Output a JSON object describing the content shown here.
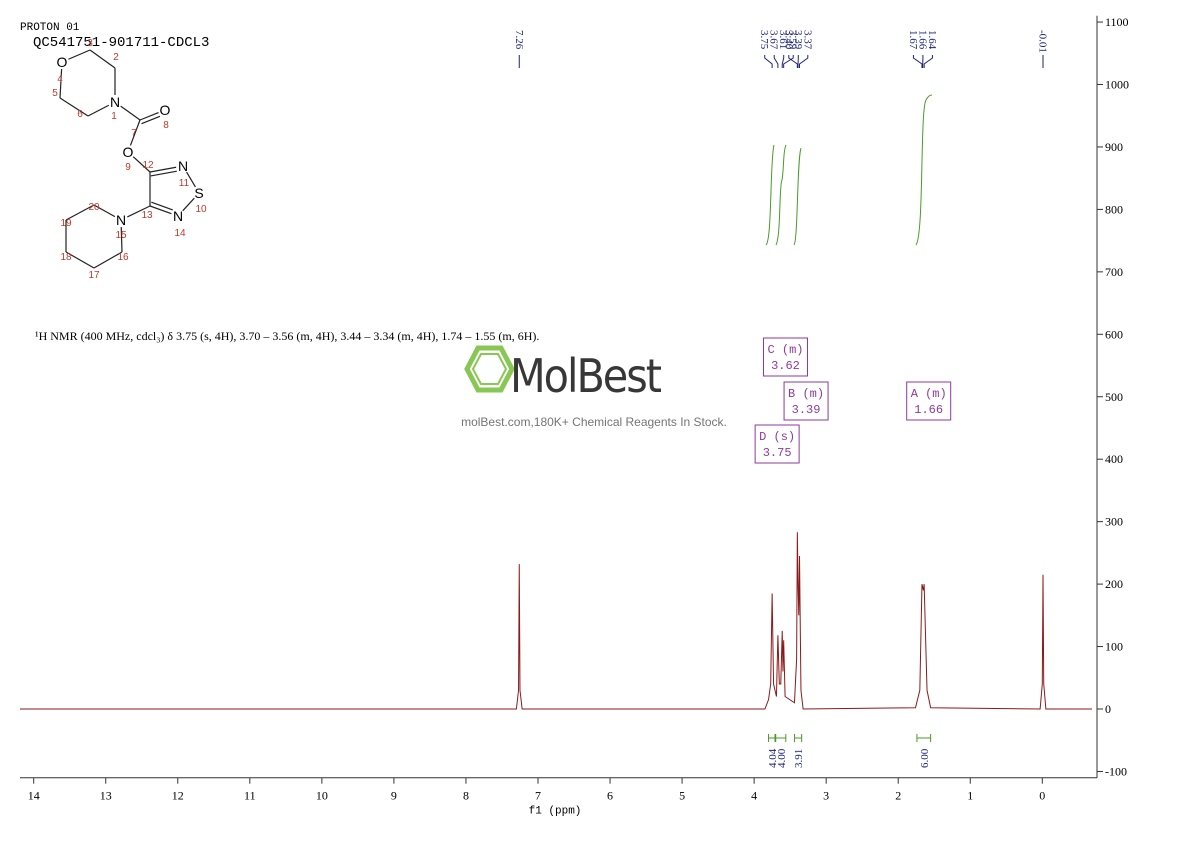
{
  "header": {
    "experiment": "PROTON 01",
    "sample": "QC541751-901711-CDCL3"
  },
  "molecule": {
    "atoms": [
      {
        "number": "1",
        "element": "N"
      },
      {
        "number": "2"
      },
      {
        "number": "3"
      },
      {
        "number": "4",
        "element": "O"
      },
      {
        "number": "5"
      },
      {
        "number": "6"
      },
      {
        "number": "7"
      },
      {
        "number": "8",
        "element": "O"
      },
      {
        "number": "9",
        "element": "O"
      },
      {
        "number": "10",
        "element": "S"
      },
      {
        "number": "11",
        "element": "N"
      },
      {
        "number": "12"
      },
      {
        "number": "13"
      },
      {
        "number": "14",
        "element": "N"
      },
      {
        "number": "15",
        "element": "N"
      },
      {
        "number": "16"
      },
      {
        "number": "17"
      },
      {
        "number": "18"
      },
      {
        "number": "19"
      },
      {
        "number": "20"
      }
    ]
  },
  "description": "¹H NMR (400 MHz, cdcl₃) δ 3.75 (s, 4H), 3.70 – 3.56 (m, 4H), 3.44 – 3.34 (m, 4H), 1.74 – 1.55 (m, 6H).",
  "watermark": {
    "brand": "MolBest",
    "tagline": "molBest.com,180K+ Chemical Reagents In Stock."
  },
  "chart_data": {
    "type": "line",
    "x_label": "f1 (ppm)",
    "color": "#8b1a1a",
    "x": [
      14.19,
      7.3,
      7.27,
      7.26,
      7.25,
      7.22,
      3.85,
      3.8,
      3.77,
      3.75,
      3.73,
      3.69,
      3.67,
      3.65,
      3.63,
      3.61,
      3.6,
      3.59,
      3.57,
      3.44,
      3.41,
      3.4,
      3.39,
      3.38,
      3.37,
      3.35,
      3.32,
      1.76,
      1.7,
      1.67,
      1.66,
      1.65,
      1.64,
      1.6,
      1.55,
      0.03,
      0.0,
      -0.01,
      -0.02,
      -0.05,
      -0.69
    ],
    "values": [
      0,
      0,
      30,
      232,
      30,
      0,
      0,
      15,
      40,
      185,
      40,
      20,
      118,
      40,
      40,
      125,
      60,
      110,
      20,
      10,
      80,
      283,
      200,
      150,
      245,
      30,
      0,
      2,
      30,
      200,
      195,
      190,
      200,
      30,
      2,
      0,
      40,
      215,
      40,
      0,
      0
    ],
    "xlim": [
      14.19,
      -0.69
    ],
    "xticks": [
      14,
      13,
      12,
      11,
      10,
      9,
      8,
      7,
      6,
      5,
      4,
      3,
      2,
      1,
      0
    ],
    "ylim": [
      -110,
      1110
    ],
    "yticks": [
      -100,
      0,
      100,
      200,
      300,
      400,
      500,
      600,
      700,
      800,
      900,
      1000,
      1100
    ],
    "peaks": [
      7.26,
      3.75,
      3.67,
      3.61,
      3.59,
      {
        "value": 3.4,
        "label": "3.40"
      },
      3.39,
      3.37,
      1.67,
      1.66,
      1.64,
      -0.01
    ],
    "multiplets": [
      {
        "name": "C (m)",
        "shift": 3.62
      },
      {
        "name": "B (m)",
        "shift": 3.39
      },
      {
        "name": "A (m)",
        "shift": 1.66
      },
      {
        "name": "D (s)",
        "shift": 3.75
      }
    ],
    "integrals": [
      {
        "range": [
          3.8,
          3.71
        ],
        "value": 4.04
      },
      {
        "range": [
          3.7,
          3.56
        ],
        "value": {
          "value": 4,
          "label": "4.00"
        }
      },
      {
        "range": [
          3.44,
          3.34
        ],
        "value": 3.91
      },
      {
        "range": [
          1.74,
          1.55
        ],
        "value": {
          "value": 6,
          "label": "6.00"
        }
      }
    ]
  }
}
